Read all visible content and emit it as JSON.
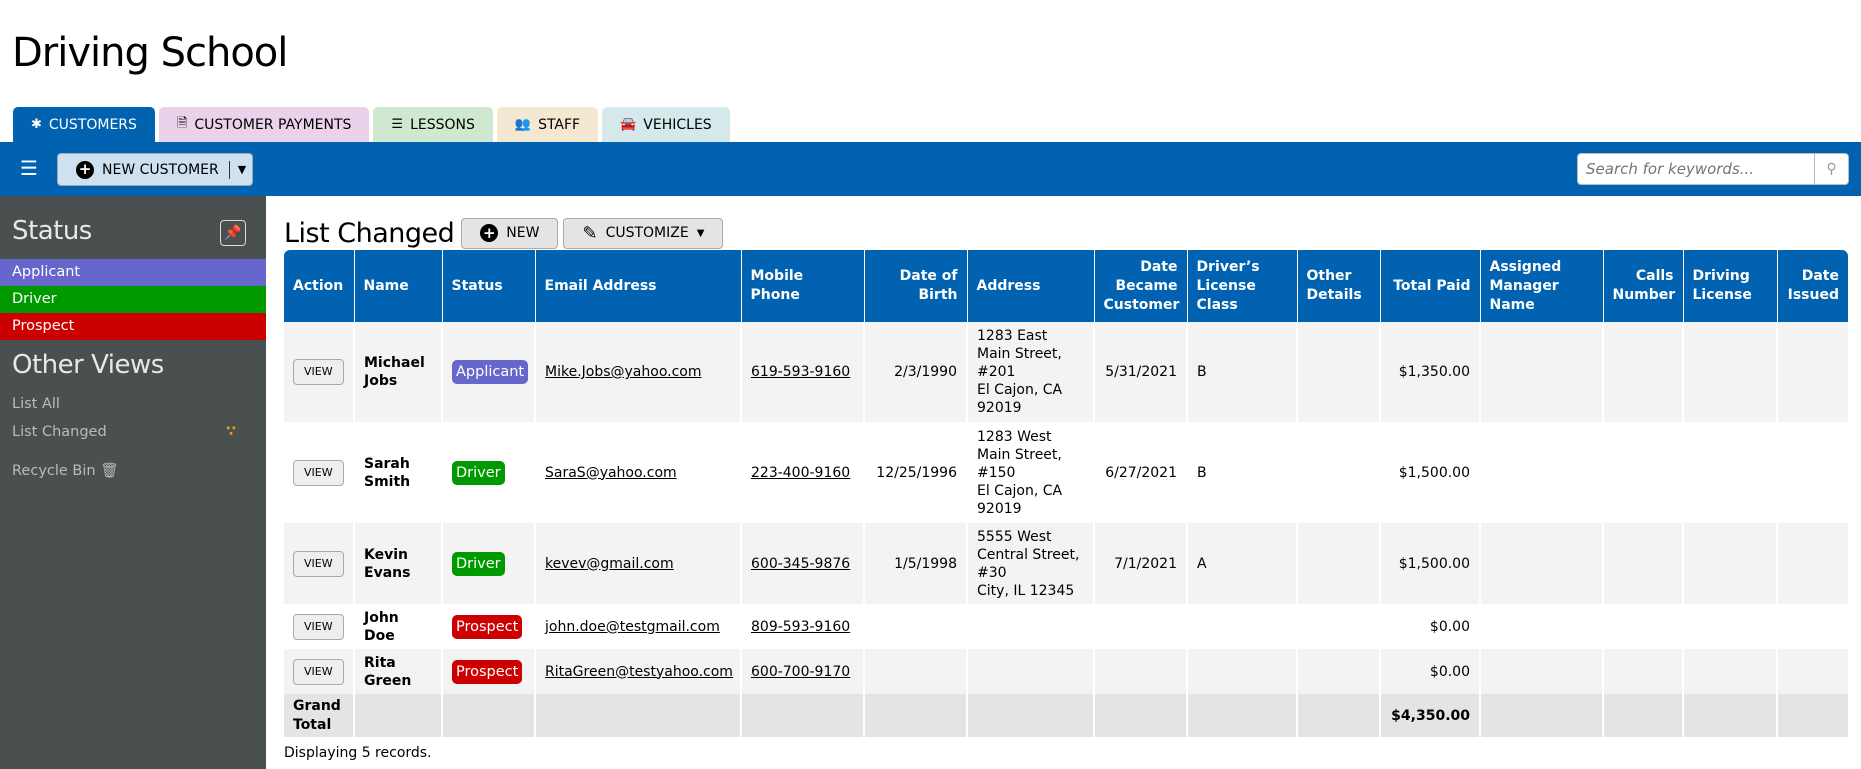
{
  "app_title": "Driving School",
  "tabs": [
    {
      "label": "CUSTOMERS",
      "icon": "asterisk-icon",
      "bg": "#0062b1",
      "color": "#ffffff",
      "active": true
    },
    {
      "label": "CUSTOMER PAYMENTS",
      "icon": "invoice-dollar-icon",
      "bg": "#ead3ea",
      "color": "#000000"
    },
    {
      "label": "LESSONS",
      "icon": "tasks-icon",
      "bg": "#cfe8cf",
      "color": "#000000"
    },
    {
      "label": "STAFF",
      "icon": "users-icon",
      "bg": "#f5e8d3",
      "color": "#000000"
    },
    {
      "label": "VEHICLES",
      "icon": "car-icon",
      "bg": "#d5e8ea",
      "color": "#000000"
    }
  ],
  "toolbar": {
    "new_customer": "NEW CUSTOMER",
    "search_placeholder": "Search for keywords..."
  },
  "sidebar": {
    "status_heading": "Status",
    "statuses": [
      {
        "label": "Applicant",
        "color": "#6666cc"
      },
      {
        "label": "Driver",
        "color": "#009900"
      },
      {
        "label": "Prospect",
        "color": "#cc0000"
      }
    ],
    "other_views_heading": "Other Views",
    "views": [
      "List All",
      "List Changed",
      "Recycle Bin"
    ]
  },
  "list": {
    "title": "List Changed",
    "new_label": "NEW",
    "customize_label": "CUSTOMIZE",
    "columns": [
      "Action",
      "Name",
      "Status",
      "Email Address",
      "Mobile Phone",
      "Date of Birth",
      "Address",
      "Date Became Customer",
      "Driver’s License Class",
      "Other Details",
      "Total Paid",
      "Assigned Manager Name",
      "Calls Number",
      "Driving License",
      "Date Issued"
    ],
    "rows": [
      {
        "action": "VIEW",
        "name": "Michael Jobs",
        "status": "Applicant",
        "status_color": "#6666cc",
        "email": "Mike.Jobs@yahoo.com",
        "phone": "619-593-9160",
        "dob": "2/3/1990",
        "address": [
          "1283 East Main Street, #201",
          "El Cajon, CA 92019"
        ],
        "became": "5/31/2021",
        "license_class": "B",
        "total": "$1,350.00"
      },
      {
        "action": "VIEW",
        "name": "Sarah Smith",
        "status": "Driver",
        "status_color": "#009900",
        "email": "SaraS@yahoo.com",
        "phone": "223-400-9160",
        "dob": "12/25/1996",
        "address": [
          "1283 West Main Street, #150",
          "El Cajon, CA 92019"
        ],
        "became": "6/27/2021",
        "license_class": "B",
        "total": "$1,500.00"
      },
      {
        "action": "VIEW",
        "name": "Kevin Evans",
        "status": "Driver",
        "status_color": "#009900",
        "email": "kevev@gmail.com",
        "phone": "600-345-9876",
        "dob": "1/5/1998",
        "address": [
          "5555 West Central Street, #30",
          "City, IL 12345"
        ],
        "became": "7/1/2021",
        "license_class": "A",
        "total": "$1,500.00"
      },
      {
        "action": "VIEW",
        "name": "John Doe",
        "status": "Prospect",
        "status_color": "#cc0000",
        "email": "john.doe@testgmail.com",
        "phone": "809-593-9160",
        "dob": "",
        "address": [],
        "became": "",
        "license_class": "",
        "total": "$0.00"
      },
      {
        "action": "VIEW",
        "name": "Rita Green",
        "status": "Prospect",
        "status_color": "#cc0000",
        "email": "RitaGreen@testyahoo.com",
        "phone": "600-700-9170",
        "dob": "",
        "address": [],
        "became": "",
        "license_class": "",
        "total": "$0.00"
      }
    ],
    "grand_total_label": "Grand Total",
    "grand_total": "$4,350.00",
    "footer": "Displaying 5 records."
  }
}
